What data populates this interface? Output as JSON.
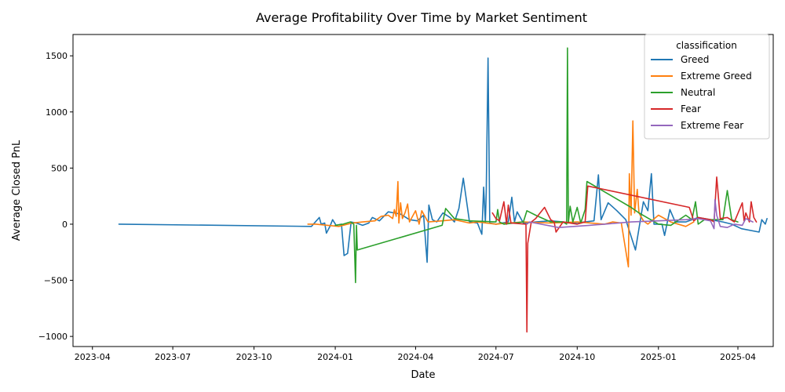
{
  "chart_data": {
    "type": "line",
    "title": "Average Profitability Over Time by Market Sentiment",
    "xlabel": "Date",
    "ylabel": "Average Closed PnL",
    "xlim": [
      "2023-03-10",
      "2025-05-11"
    ],
    "ylim": [
      -1090,
      1690
    ],
    "x_ticks": [
      "2023-04-01",
      "2023-07-01",
      "2023-10-01",
      "2024-01-01",
      "2024-04-01",
      "2024-07-01",
      "2024-10-01",
      "2025-01-01",
      "2025-04-01"
    ],
    "x_tick_labels": [
      "2023-04",
      "2023-07",
      "2023-10",
      "2024-01",
      "2024-04",
      "2024-07",
      "2024-10",
      "2025-01",
      "2025-04"
    ],
    "y_ticks": [
      -1000,
      -500,
      0,
      500,
      1000,
      1500
    ],
    "y_tick_labels": [
      "−1000",
      "−500",
      "0",
      "500",
      "1000",
      "1500"
    ],
    "grid": false,
    "legend": {
      "title": "classification",
      "placement": "top-right"
    },
    "series": [
      {
        "name": "Greed",
        "color": "#1f77b4",
        "points": [
          [
            "2023-05-01",
            0
          ],
          [
            "2023-12-05",
            -20
          ],
          [
            "2023-12-14",
            60
          ],
          [
            "2023-12-16",
            0
          ],
          [
            "2023-12-20",
            10
          ],
          [
            "2023-12-22",
            -80
          ],
          [
            "2023-12-26",
            -20
          ],
          [
            "2023-12-29",
            40
          ],
          [
            "2024-01-02",
            -10
          ],
          [
            "2024-01-08",
            0
          ],
          [
            "2024-01-11",
            -280
          ],
          [
            "2024-01-15",
            -260
          ],
          [
            "2024-01-19",
            20
          ],
          [
            "2024-01-25",
            10
          ],
          [
            "2024-02-01",
            -10
          ],
          [
            "2024-02-08",
            10
          ],
          [
            "2024-02-12",
            60
          ],
          [
            "2024-02-20",
            30
          ],
          [
            "2024-03-01",
            110
          ],
          [
            "2024-03-08",
            100
          ],
          [
            "2024-03-15",
            90
          ],
          [
            "2024-03-25",
            40
          ],
          [
            "2024-04-03",
            30
          ],
          [
            "2024-04-10",
            80
          ],
          [
            "2024-04-14",
            -340
          ],
          [
            "2024-04-16",
            170
          ],
          [
            "2024-04-20",
            40
          ],
          [
            "2024-04-25",
            20
          ],
          [
            "2024-05-02",
            100
          ],
          [
            "2024-05-10",
            60
          ],
          [
            "2024-05-15",
            20
          ],
          [
            "2024-05-20",
            140
          ],
          [
            "2024-05-25",
            410
          ],
          [
            "2024-06-01",
            20
          ],
          [
            "2024-06-10",
            10
          ],
          [
            "2024-06-15",
            -90
          ],
          [
            "2024-06-17",
            330
          ],
          [
            "2024-06-19",
            20
          ],
          [
            "2024-06-20",
            280
          ],
          [
            "2024-06-22",
            1480
          ],
          [
            "2024-06-24",
            10
          ],
          [
            "2024-07-01",
            0
          ],
          [
            "2024-07-15",
            20
          ],
          [
            "2024-07-19",
            240
          ],
          [
            "2024-07-22",
            20
          ],
          [
            "2024-07-25",
            110
          ],
          [
            "2024-08-01",
            10
          ],
          [
            "2024-08-15",
            20
          ],
          [
            "2024-09-01",
            30
          ],
          [
            "2024-09-15",
            20
          ],
          [
            "2024-09-25",
            10
          ],
          [
            "2024-10-10",
            20
          ],
          [
            "2024-10-20",
            30
          ],
          [
            "2024-10-25",
            440
          ],
          [
            "2024-10-28",
            40
          ],
          [
            "2024-11-05",
            190
          ],
          [
            "2024-11-15",
            120
          ],
          [
            "2024-11-25",
            40
          ],
          [
            "2024-12-06",
            -230
          ],
          [
            "2024-12-15",
            200
          ],
          [
            "2024-12-20",
            120
          ],
          [
            "2024-12-24",
            450
          ],
          [
            "2024-12-27",
            0
          ],
          [
            "2025-01-05",
            0
          ],
          [
            "2025-01-08",
            -100
          ],
          [
            "2025-01-14",
            130
          ],
          [
            "2025-01-20",
            20
          ],
          [
            "2025-02-01",
            20
          ],
          [
            "2025-02-15",
            60
          ],
          [
            "2025-03-01",
            40
          ],
          [
            "2025-03-15",
            20
          ],
          [
            "2025-03-25",
            0
          ],
          [
            "2025-04-05",
            -40
          ],
          [
            "2025-04-25",
            -70
          ],
          [
            "2025-04-28",
            40
          ],
          [
            "2025-05-02",
            0
          ],
          [
            "2025-05-04",
            50
          ]
        ]
      },
      {
        "name": "Extreme Greed",
        "color": "#ff7f0e",
        "points": [
          [
            "2023-12-01",
            0
          ],
          [
            "2023-12-10",
            0
          ],
          [
            "2024-01-05",
            -20
          ],
          [
            "2024-01-20",
            10
          ],
          [
            "2024-02-01",
            20
          ],
          [
            "2024-02-15",
            30
          ],
          [
            "2024-02-22",
            70
          ],
          [
            "2024-03-01",
            80
          ],
          [
            "2024-03-06",
            50
          ],
          [
            "2024-03-08",
            130
          ],
          [
            "2024-03-10",
            70
          ],
          [
            "2024-03-12",
            380
          ],
          [
            "2024-03-13",
            10
          ],
          [
            "2024-03-15",
            190
          ],
          [
            "2024-03-17",
            50
          ],
          [
            "2024-03-20",
            100
          ],
          [
            "2024-03-23",
            180
          ],
          [
            "2024-03-25",
            20
          ],
          [
            "2024-04-01",
            120
          ],
          [
            "2024-04-05",
            0
          ],
          [
            "2024-04-08",
            120
          ],
          [
            "2024-04-15",
            20
          ],
          [
            "2024-05-01",
            30
          ],
          [
            "2024-05-15",
            40
          ],
          [
            "2024-06-01",
            10
          ],
          [
            "2024-06-10",
            20
          ],
          [
            "2024-06-20",
            10
          ],
          [
            "2024-07-01",
            0
          ],
          [
            "2024-07-15",
            10
          ],
          [
            "2024-08-01",
            20
          ],
          [
            "2024-09-01",
            10
          ],
          [
            "2024-10-01",
            20
          ],
          [
            "2024-11-01",
            0
          ],
          [
            "2024-11-10",
            20
          ],
          [
            "2024-11-20",
            10
          ],
          [
            "2024-11-28",
            -380
          ],
          [
            "2024-11-29",
            450
          ],
          [
            "2024-12-01",
            80
          ],
          [
            "2024-12-03",
            920
          ],
          [
            "2024-12-05",
            100
          ],
          [
            "2024-12-08",
            310
          ],
          [
            "2024-12-10",
            100
          ],
          [
            "2024-12-15",
            30
          ],
          [
            "2024-12-20",
            0
          ],
          [
            "2025-01-01",
            80
          ],
          [
            "2025-01-15",
            20
          ],
          [
            "2025-02-01",
            -20
          ],
          [
            "2025-02-10",
            20
          ]
        ]
      },
      {
        "name": "Neutral",
        "color": "#2ca02c",
        "points": [
          [
            "2024-01-01",
            -10
          ],
          [
            "2024-01-10",
            0
          ],
          [
            "2024-01-18",
            20
          ],
          [
            "2024-01-22",
            0
          ],
          [
            "2024-01-24",
            -520
          ],
          [
            "2024-01-25",
            -10
          ],
          [
            "2024-01-26",
            -230
          ],
          [
            "2024-05-01",
            -10
          ],
          [
            "2024-05-05",
            140
          ],
          [
            "2024-05-15",
            50
          ],
          [
            "2024-06-01",
            30
          ],
          [
            "2024-07-01",
            20
          ],
          [
            "2024-07-03",
            130
          ],
          [
            "2024-07-05",
            20
          ],
          [
            "2024-07-10",
            0
          ],
          [
            "2024-08-01",
            20
          ],
          [
            "2024-08-05",
            120
          ],
          [
            "2024-08-15",
            80
          ],
          [
            "2024-09-01",
            20
          ],
          [
            "2024-09-15",
            20
          ],
          [
            "2024-09-19",
            0
          ],
          [
            "2024-09-20",
            1570
          ],
          [
            "2024-09-21",
            10
          ],
          [
            "2024-09-23",
            160
          ],
          [
            "2024-09-26",
            20
          ],
          [
            "2024-10-01",
            150
          ],
          [
            "2024-10-05",
            10
          ],
          [
            "2024-10-10",
            130
          ],
          [
            "2024-10-12",
            380
          ],
          [
            "2024-12-01",
            150
          ],
          [
            "2024-12-10",
            100
          ],
          [
            "2025-01-01",
            0
          ],
          [
            "2025-01-15",
            -10
          ],
          [
            "2025-02-01",
            80
          ],
          [
            "2025-02-08",
            40
          ],
          [
            "2025-02-12",
            200
          ],
          [
            "2025-02-15",
            0
          ],
          [
            "2025-02-22",
            40
          ],
          [
            "2025-03-15",
            40
          ],
          [
            "2025-03-20",
            300
          ],
          [
            "2025-03-25",
            40
          ],
          [
            "2025-04-01",
            20
          ]
        ]
      },
      {
        "name": "Fear",
        "color": "#d62728",
        "points": [
          [
            "2024-06-27",
            100
          ],
          [
            "2024-07-01",
            50
          ],
          [
            "2024-07-05",
            30
          ],
          [
            "2024-07-10",
            200
          ],
          [
            "2024-07-13",
            0
          ],
          [
            "2024-07-15",
            170
          ],
          [
            "2024-07-18",
            10
          ],
          [
            "2024-08-04",
            0
          ],
          [
            "2024-08-05",
            -960
          ],
          [
            "2024-08-06",
            -170
          ],
          [
            "2024-08-10",
            20
          ],
          [
            "2024-08-15",
            50
          ],
          [
            "2024-08-20",
            100
          ],
          [
            "2024-08-25",
            150
          ],
          [
            "2024-09-01",
            40
          ],
          [
            "2024-09-05",
            20
          ],
          [
            "2024-09-07",
            -70
          ],
          [
            "2024-09-15",
            20
          ],
          [
            "2024-10-01",
            0
          ],
          [
            "2024-10-10",
            20
          ],
          [
            "2024-10-13",
            340
          ],
          [
            "2025-02-05",
            150
          ],
          [
            "2025-02-10",
            30
          ],
          [
            "2025-02-15",
            60
          ],
          [
            "2025-03-01",
            40
          ],
          [
            "2025-03-05",
            20
          ],
          [
            "2025-03-08",
            420
          ],
          [
            "2025-03-12",
            50
          ],
          [
            "2025-03-20",
            60
          ],
          [
            "2025-03-28",
            20
          ],
          [
            "2025-04-06",
            190
          ],
          [
            "2025-04-08",
            30
          ],
          [
            "2025-04-10",
            100
          ],
          [
            "2025-04-14",
            20
          ],
          [
            "2025-04-16",
            200
          ],
          [
            "2025-04-19",
            60
          ],
          [
            "2025-04-22",
            20
          ]
        ]
      },
      {
        "name": "Extreme Fear",
        "color": "#9467bd",
        "points": [
          [
            "2024-08-05",
            0
          ],
          [
            "2024-08-08",
            20
          ],
          [
            "2024-09-10",
            -30
          ],
          [
            "2024-10-15",
            -10
          ],
          [
            "2024-11-01",
            0
          ],
          [
            "2024-12-01",
            20
          ],
          [
            "2025-01-01",
            30
          ],
          [
            "2025-02-01",
            40
          ],
          [
            "2025-02-15",
            50
          ],
          [
            "2025-03-01",
            30
          ],
          [
            "2025-03-05",
            -40
          ],
          [
            "2025-03-06",
            220
          ],
          [
            "2025-03-08",
            80
          ],
          [
            "2025-03-12",
            -20
          ],
          [
            "2025-03-20",
            -30
          ],
          [
            "2025-03-28",
            0
          ],
          [
            "2025-04-06",
            -10
          ],
          [
            "2025-04-10",
            50
          ],
          [
            "2025-04-18",
            20
          ]
        ]
      }
    ]
  }
}
